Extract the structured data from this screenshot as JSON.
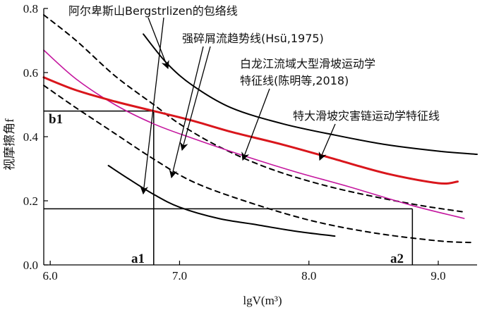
{
  "chart_data": {
    "type": "line",
    "xlabel": "lgV(m³)",
    "ylabel": "视摩擦角f",
    "xlim": [
      5.95,
      9.3
    ],
    "ylim": [
      0.0,
      0.8
    ],
    "x_ticks": [
      6.0,
      7.0,
      8.0,
      9.0
    ],
    "x_tick_labels": [
      "6.0",
      "7.0",
      "8.0",
      "9.0"
    ],
    "y_ticks": [
      0.0,
      0.2,
      0.4,
      0.6,
      0.8
    ],
    "y_tick_labels": [
      "0.0",
      "0.2",
      "0.4",
      "0.6",
      "0.8"
    ],
    "grid": false,
    "legend": "none",
    "series": [
      {
        "name": "阿尔卑斯山Bergstrlizen的包络线",
        "style": "solid",
        "color": "#000000",
        "segments": [
          {
            "x": [
              6.72,
              6.9,
              7.1,
              7.4,
              7.8,
              8.2,
              8.6,
              9.0,
              9.3
            ],
            "y": [
              0.72,
              0.63,
              0.56,
              0.49,
              0.44,
              0.405,
              0.375,
              0.355,
              0.345
            ]
          },
          {
            "x": [
              6.45,
              6.6,
              6.8,
              7.0,
              7.3,
              7.6,
              7.9,
              8.2
            ],
            "y": [
              0.31,
              0.27,
              0.22,
              0.18,
              0.145,
              0.125,
              0.105,
              0.09
            ]
          }
        ]
      },
      {
        "name": "强碎屑流趋势线(Hsü,1975)",
        "style": "dashed",
        "color": "#000000",
        "segments": [
          {
            "x": [
              5.95,
              6.2,
              6.5,
              6.8,
              7.0,
              7.3,
              7.7,
              8.2,
              8.8,
              9.2
            ],
            "y": [
              0.78,
              0.7,
              0.59,
              0.5,
              0.44,
              0.37,
              0.3,
              0.24,
              0.19,
              0.165
            ]
          },
          {
            "x": [
              5.95,
              6.2,
              6.5,
              6.8,
              7.1,
              7.5,
              8.0,
              8.5,
              9.0,
              9.25
            ],
            "y": [
              0.56,
              0.49,
              0.41,
              0.33,
              0.26,
              0.2,
              0.14,
              0.1,
              0.075,
              0.07
            ]
          }
        ]
      },
      {
        "name": "白龙江流域大型滑坡运动学特征线(陈明等,2018)",
        "style": "solid",
        "color": "#c4169e",
        "segments": [
          {
            "x": [
              5.95,
              6.2,
              6.5,
              6.8,
              7.1,
              7.5,
              7.9,
              8.3,
              8.8,
              9.2
            ],
            "y": [
              0.67,
              0.58,
              0.5,
              0.44,
              0.395,
              0.34,
              0.29,
              0.245,
              0.185,
              0.145
            ]
          }
        ]
      },
      {
        "name": "特大滑坡灾害链运动学特征线",
        "style": "solid",
        "color": "#d9161c",
        "segments": [
          {
            "x": [
              5.95,
              6.2,
              6.5,
              6.8,
              7.1,
              7.4,
              7.8,
              8.2,
              8.6,
              9.0,
              9.15
            ],
            "y": [
              0.585,
              0.545,
              0.51,
              0.48,
              0.45,
              0.415,
              0.375,
              0.33,
              0.285,
              0.255,
              0.26
            ]
          }
        ]
      }
    ],
    "reference_lines": [
      {
        "name": "b1",
        "value": 0.48,
        "orientation": "horizontal"
      },
      {
        "name": "a1",
        "value": 6.8,
        "orientation": "vertical"
      },
      {
        "name": "a2",
        "value": 8.8,
        "orientation": "vertical"
      },
      {
        "name": "horizontal-0.175",
        "value": 0.175,
        "orientation": "horizontal"
      }
    ],
    "annotations": [
      {
        "id": "ann-alps",
        "text": "阿尔卑斯山Bergstrlizen的包络线"
      },
      {
        "id": "ann-hsu",
        "text": "强碎屑流趋势线(Hsü,1975)"
      },
      {
        "id": "ann-bailong-1",
        "text": "白龙江流域大型滑坡运动学"
      },
      {
        "id": "ann-bailong-2",
        "text": "特征线(陈明等,2018)"
      },
      {
        "id": "ann-chain",
        "text": "特大滑坡灾害链运动学特征线"
      }
    ],
    "point_labels": {
      "b1": "b1",
      "a1": "a1",
      "a2": "a2"
    }
  }
}
